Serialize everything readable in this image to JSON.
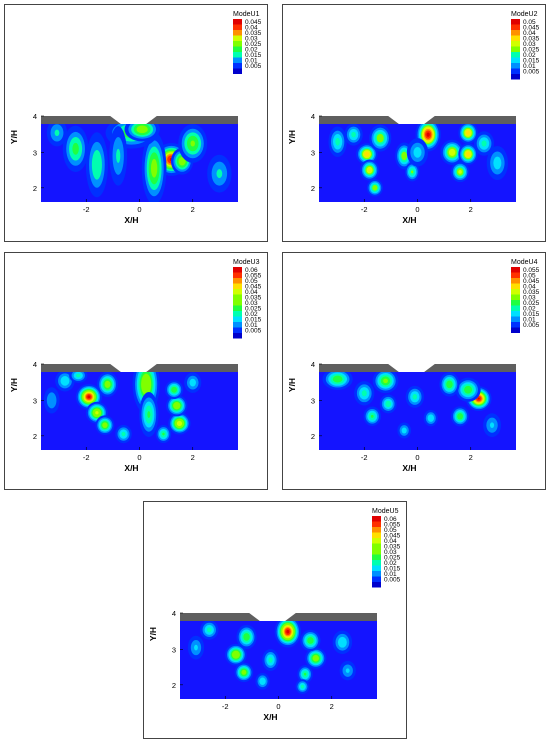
{
  "chart_data": [
    {
      "type": "heatmap",
      "title": "ModeU1",
      "xlabel": "X/H",
      "ylabel": "Y/H",
      "x_ticks": [
        "-2",
        "0",
        "2"
      ],
      "y_ticks": [
        "2",
        "3",
        "4"
      ],
      "xlim": [
        -3.7,
        3.7
      ],
      "ylim": [
        1.6,
        4.0
      ],
      "legend_title": "ModeU1",
      "legend_levels": [
        "0.045",
        "0.04",
        "0.035",
        "0.03",
        "0.025",
        "0.02",
        "0.015",
        "0.01",
        "0.005"
      ],
      "max_level": 0.045,
      "blobs": [
        {
          "x": 1.2,
          "y": 2.8,
          "sx": 0.3,
          "sy": 0.22,
          "v": 0.046
        },
        {
          "x": 1.6,
          "y": 2.75,
          "sx": 0.22,
          "sy": 0.2,
          "v": 0.03
        },
        {
          "x": 0.55,
          "y": 2.55,
          "sx": 0.25,
          "sy": 0.55,
          "v": 0.028
        },
        {
          "x": 2.0,
          "y": 3.25,
          "sx": 0.3,
          "sy": 0.3,
          "v": 0.026
        },
        {
          "x": -2.4,
          "y": 3.1,
          "sx": 0.28,
          "sy": 0.38,
          "v": 0.022
        },
        {
          "x": -1.6,
          "y": 2.65,
          "sx": 0.25,
          "sy": 0.55,
          "v": 0.02
        },
        {
          "x": -0.3,
          "y": 3.55,
          "sx": 0.55,
          "sy": 0.25,
          "v": 0.024
        },
        {
          "x": 0.1,
          "y": 3.65,
          "sx": 0.35,
          "sy": 0.18,
          "v": 0.03
        },
        {
          "x": -0.8,
          "y": 2.9,
          "sx": 0.22,
          "sy": 0.55,
          "v": 0.016
        },
        {
          "x": -3.1,
          "y": 3.55,
          "sx": 0.25,
          "sy": 0.25,
          "v": 0.016
        },
        {
          "x": 3.0,
          "y": 2.4,
          "sx": 0.3,
          "sy": 0.35,
          "v": 0.016
        }
      ]
    },
    {
      "type": "heatmap",
      "title": "ModeU2",
      "xlabel": "X/H",
      "ylabel": "Y/H",
      "x_ticks": [
        "-2",
        "0",
        "2"
      ],
      "y_ticks": [
        "2",
        "3",
        "4"
      ],
      "xlim": [
        -3.7,
        3.7
      ],
      "ylim": [
        1.6,
        4.0
      ],
      "legend_title": "ModeU2",
      "legend_levels": [
        "0.05",
        "0.045",
        "0.04",
        "0.035",
        "0.03",
        "0.025",
        "0.02",
        "0.015",
        "0.01",
        "0.005"
      ],
      "max_level": 0.05,
      "blobs": [
        {
          "x": 0.4,
          "y": 3.5,
          "sx": 0.22,
          "sy": 0.22,
          "v": 0.052
        },
        {
          "x": 1.3,
          "y": 3.0,
          "sx": 0.22,
          "sy": 0.18,
          "v": 0.035
        },
        {
          "x": 1.9,
          "y": 3.55,
          "sx": 0.18,
          "sy": 0.15,
          "v": 0.04
        },
        {
          "x": 1.9,
          "y": 2.95,
          "sx": 0.18,
          "sy": 0.15,
          "v": 0.04
        },
        {
          "x": 1.6,
          "y": 2.45,
          "sx": 0.18,
          "sy": 0.15,
          "v": 0.032
        },
        {
          "x": 2.5,
          "y": 3.25,
          "sx": 0.22,
          "sy": 0.2,
          "v": 0.022
        },
        {
          "x": -1.9,
          "y": 2.95,
          "sx": 0.2,
          "sy": 0.15,
          "v": 0.04
        },
        {
          "x": -1.8,
          "y": 2.5,
          "sx": 0.18,
          "sy": 0.15,
          "v": 0.036
        },
        {
          "x": -1.6,
          "y": 2.0,
          "sx": 0.16,
          "sy": 0.13,
          "v": 0.03
        },
        {
          "x": -1.4,
          "y": 3.4,
          "sx": 0.22,
          "sy": 0.2,
          "v": 0.03
        },
        {
          "x": -0.5,
          "y": 2.9,
          "sx": 0.18,
          "sy": 0.2,
          "v": 0.03
        },
        {
          "x": -0.2,
          "y": 2.45,
          "sx": 0.15,
          "sy": 0.15,
          "v": 0.026
        },
        {
          "x": -3.0,
          "y": 3.3,
          "sx": 0.2,
          "sy": 0.25,
          "v": 0.022
        },
        {
          "x": -2.4,
          "y": 3.5,
          "sx": 0.2,
          "sy": 0.18,
          "v": 0.022
        },
        {
          "x": 0.0,
          "y": 3.0,
          "sx": 0.25,
          "sy": 0.25,
          "v": 0.018
        },
        {
          "x": 3.0,
          "y": 2.7,
          "sx": 0.25,
          "sy": 0.3,
          "v": 0.018
        }
      ]
    },
    {
      "type": "heatmap",
      "title": "ModeU3",
      "xlabel": "X/H",
      "ylabel": "Y/H",
      "x_ticks": [
        "-2",
        "0",
        "2"
      ],
      "y_ticks": [
        "2",
        "3",
        "4"
      ],
      "xlim": [
        -3.7,
        3.7
      ],
      "ylim": [
        1.6,
        4.0
      ],
      "legend_title": "ModeU3",
      "legend_levels": [
        "0.06",
        "0.055",
        "0.05",
        "0.045",
        "0.04",
        "0.035",
        "0.03",
        "0.025",
        "0.02",
        "0.015",
        "0.01",
        "0.005"
      ],
      "max_level": 0.06,
      "blobs": [
        {
          "x": -1.9,
          "y": 3.1,
          "sx": 0.22,
          "sy": 0.16,
          "v": 0.062
        },
        {
          "x": -1.6,
          "y": 2.65,
          "sx": 0.2,
          "sy": 0.15,
          "v": 0.042
        },
        {
          "x": -1.3,
          "y": 2.3,
          "sx": 0.18,
          "sy": 0.14,
          "v": 0.035
        },
        {
          "x": -1.2,
          "y": 3.45,
          "sx": 0.2,
          "sy": 0.18,
          "v": 0.035
        },
        {
          "x": 0.25,
          "y": 3.45,
          "sx": 0.25,
          "sy": 0.4,
          "v": 0.04
        },
        {
          "x": 0.35,
          "y": 2.6,
          "sx": 0.2,
          "sy": 0.35,
          "v": 0.026
        },
        {
          "x": 1.5,
          "y": 2.35,
          "sx": 0.2,
          "sy": 0.15,
          "v": 0.045
        },
        {
          "x": 1.4,
          "y": 2.85,
          "sx": 0.2,
          "sy": 0.15,
          "v": 0.038
        },
        {
          "x": 1.3,
          "y": 3.3,
          "sx": 0.18,
          "sy": 0.14,
          "v": 0.03
        },
        {
          "x": 0.9,
          "y": 2.05,
          "sx": 0.16,
          "sy": 0.14,
          "v": 0.026
        },
        {
          "x": -0.6,
          "y": 2.05,
          "sx": 0.18,
          "sy": 0.15,
          "v": 0.022
        },
        {
          "x": -2.8,
          "y": 3.55,
          "sx": 0.22,
          "sy": 0.18,
          "v": 0.02
        },
        {
          "x": -2.3,
          "y": 3.7,
          "sx": 0.2,
          "sy": 0.12,
          "v": 0.022
        },
        {
          "x": 2.0,
          "y": 3.5,
          "sx": 0.2,
          "sy": 0.18,
          "v": 0.018
        },
        {
          "x": -3.3,
          "y": 3.0,
          "sx": 0.2,
          "sy": 0.25,
          "v": 0.015
        }
      ]
    },
    {
      "type": "heatmap",
      "title": "ModeU4",
      "xlabel": "X/H",
      "ylabel": "Y/H",
      "x_ticks": [
        "-2",
        "0",
        "2"
      ],
      "y_ticks": [
        "2",
        "3",
        "4"
      ],
      "xlim": [
        -3.7,
        3.7
      ],
      "ylim": [
        1.6,
        4.0
      ],
      "legend_title": "ModeU4",
      "legend_levels": [
        "0.055",
        "0.05",
        "0.045",
        "0.04",
        "0.035",
        "0.03",
        "0.025",
        "0.02",
        "0.015",
        "0.01",
        "0.005"
      ],
      "max_level": 0.055,
      "blobs": [
        {
          "x": 2.3,
          "y": 3.05,
          "sx": 0.22,
          "sy": 0.16,
          "v": 0.056
        },
        {
          "x": 1.9,
          "y": 3.3,
          "sx": 0.25,
          "sy": 0.18,
          "v": 0.03
        },
        {
          "x": 1.6,
          "y": 2.55,
          "sx": 0.18,
          "sy": 0.15,
          "v": 0.03
        },
        {
          "x": 1.2,
          "y": 3.45,
          "sx": 0.2,
          "sy": 0.18,
          "v": 0.03
        },
        {
          "x": -1.2,
          "y": 3.55,
          "sx": 0.25,
          "sy": 0.18,
          "v": 0.032
        },
        {
          "x": -3.0,
          "y": 3.6,
          "sx": 0.3,
          "sy": 0.16,
          "v": 0.03
        },
        {
          "x": -2.0,
          "y": 3.2,
          "sx": 0.22,
          "sy": 0.2,
          "v": 0.022
        },
        {
          "x": -1.7,
          "y": 2.55,
          "sx": 0.18,
          "sy": 0.15,
          "v": 0.026
        },
        {
          "x": -1.1,
          "y": 2.9,
          "sx": 0.18,
          "sy": 0.15,
          "v": 0.024
        },
        {
          "x": -0.1,
          "y": 3.1,
          "sx": 0.2,
          "sy": 0.18,
          "v": 0.022
        },
        {
          "x": 0.5,
          "y": 2.5,
          "sx": 0.16,
          "sy": 0.14,
          "v": 0.02
        },
        {
          "x": -0.5,
          "y": 2.15,
          "sx": 0.16,
          "sy": 0.14,
          "v": 0.018
        },
        {
          "x": 2.8,
          "y": 2.3,
          "sx": 0.22,
          "sy": 0.22,
          "v": 0.016
        }
      ]
    },
    {
      "type": "heatmap",
      "title": "ModeU5",
      "xlabel": "X/H",
      "ylabel": "Y/H",
      "x_ticks": [
        "-2",
        "0",
        "2"
      ],
      "y_ticks": [
        "2",
        "3",
        "4"
      ],
      "xlim": [
        -3.7,
        3.7
      ],
      "ylim": [
        1.6,
        4.0
      ],
      "legend_title": "ModeU5",
      "legend_levels": [
        "0.06",
        "0.055",
        "0.05",
        "0.045",
        "0.04",
        "0.035",
        "0.03",
        "0.025",
        "0.02",
        "0.015",
        "0.01",
        "0.005"
      ],
      "max_level": 0.06,
      "blobs": [
        {
          "x": 0.35,
          "y": 3.5,
          "sx": 0.22,
          "sy": 0.2,
          "v": 0.062
        },
        {
          "x": -1.6,
          "y": 2.85,
          "sx": 0.2,
          "sy": 0.15,
          "v": 0.04
        },
        {
          "x": -1.3,
          "y": 2.35,
          "sx": 0.18,
          "sy": 0.14,
          "v": 0.034
        },
        {
          "x": -1.2,
          "y": 3.35,
          "sx": 0.2,
          "sy": 0.18,
          "v": 0.03
        },
        {
          "x": 1.4,
          "y": 2.75,
          "sx": 0.2,
          "sy": 0.15,
          "v": 0.036
        },
        {
          "x": 1.2,
          "y": 3.25,
          "sx": 0.2,
          "sy": 0.16,
          "v": 0.03
        },
        {
          "x": 1.0,
          "y": 2.3,
          "sx": 0.16,
          "sy": 0.14,
          "v": 0.026
        },
        {
          "x": 0.9,
          "y": 1.95,
          "sx": 0.15,
          "sy": 0.12,
          "v": 0.022
        },
        {
          "x": -0.3,
          "y": 2.7,
          "sx": 0.18,
          "sy": 0.18,
          "v": 0.022
        },
        {
          "x": -0.6,
          "y": 2.1,
          "sx": 0.16,
          "sy": 0.14,
          "v": 0.02
        },
        {
          "x": -2.6,
          "y": 3.55,
          "sx": 0.2,
          "sy": 0.16,
          "v": 0.022
        },
        {
          "x": -3.1,
          "y": 3.05,
          "sx": 0.2,
          "sy": 0.22,
          "v": 0.016
        },
        {
          "x": 2.4,
          "y": 3.2,
          "sx": 0.22,
          "sy": 0.2,
          "v": 0.02
        },
        {
          "x": 2.6,
          "y": 2.4,
          "sx": 0.2,
          "sy": 0.18,
          "v": 0.016
        }
      ]
    }
  ],
  "colors": {
    "colormap": [
      "#0000cc",
      "#0030ff",
      "#0090ff",
      "#00e0ff",
      "#00ffb0",
      "#20ff40",
      "#80ff00",
      "#d0ff00",
      "#ffe000",
      "#ff9000",
      "#ff3000",
      "#e00000"
    ],
    "background": "#1414ff",
    "surface": "#5f5f5f"
  }
}
